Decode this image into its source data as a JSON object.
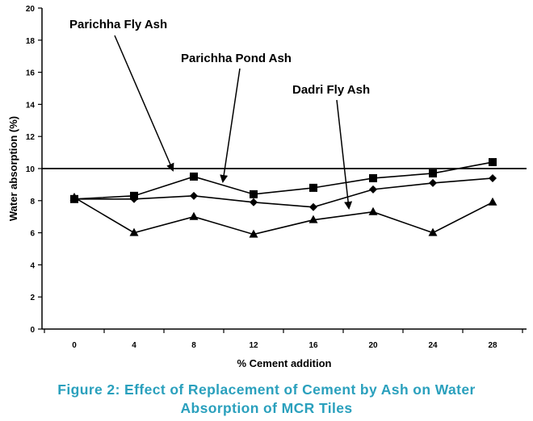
{
  "chart_data": {
    "type": "line",
    "xlabel": "% Cement addition",
    "ylabel": "Water absorption (%)",
    "ylim": [
      0,
      20
    ],
    "yticks": [
      0,
      2,
      4,
      6,
      8,
      10,
      12,
      14,
      16,
      18,
      20
    ],
    "categories": [
      "0",
      "4",
      "8",
      "12",
      "16",
      "20",
      "24",
      "28"
    ],
    "x": [
      0,
      4,
      8,
      12,
      16,
      20,
      24,
      28
    ],
    "grid": "horizontal line at 10 only",
    "series": [
      {
        "name": "Parichha Fly Ash",
        "marker": "diamond",
        "values": [
          8.1,
          8.1,
          8.3,
          7.9,
          7.6,
          8.7,
          9.1,
          9.4
        ]
      },
      {
        "name": "Parichha Pond Ash",
        "marker": "square",
        "values": [
          8.1,
          8.3,
          9.5,
          8.4,
          8.8,
          9.4,
          9.7,
          10.4
        ]
      },
      {
        "name": "Dadri Fly Ash",
        "marker": "triangle",
        "values": [
          8.2,
          6.0,
          7.0,
          5.9,
          6.8,
          7.3,
          6.0,
          7.9
        ]
      }
    ],
    "annotations": [
      "Parichha Fly Ash",
      "Parichha Pond Ash",
      "Dadri Fly Ash"
    ]
  },
  "caption": {
    "line1": "Figure 2: Effect of Replacement of Cement by Ash on Water",
    "line2": "Absorption of MCR Tiles"
  },
  "colors": {
    "caption": "#2aa0bd",
    "series": "#000000"
  }
}
